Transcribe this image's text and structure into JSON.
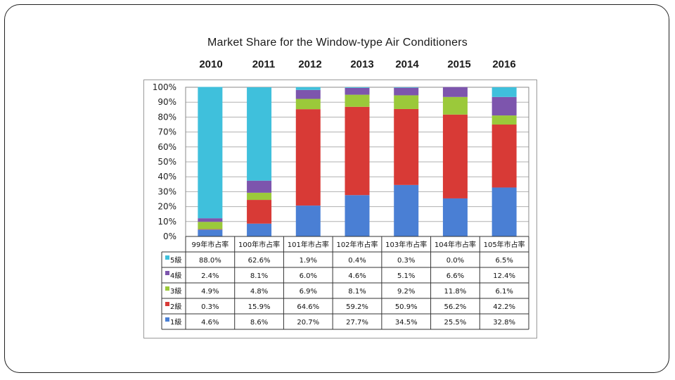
{
  "years": [
    "2010",
    "2011",
    "2012",
    "2013",
    "2014",
    "2015",
    "2016"
  ],
  "colors": {
    "frame": "#222222",
    "grid": "#b0b0b0",
    "s1": "#4a7fd4",
    "s2": "#d83a36",
    "s3": "#9bc93a",
    "s4": "#7d55ad",
    "s5": "#3fc0dc"
  },
  "chart_data": {
    "type": "bar",
    "stacked": true,
    "title": "Market Share for the Window-type Air Conditioners",
    "categories": [
      "99年市占率",
      "100年市占率",
      "101年市占率",
      "102年市占率",
      "103年市占率",
      "104年市占率",
      "105年市占率"
    ],
    "y_ticks": [
      "0%",
      "10%",
      "20%",
      "30%",
      "40%",
      "50%",
      "60%",
      "70%",
      "80%",
      "90%",
      "100%"
    ],
    "ylim": [
      0,
      100
    ],
    "grid": true,
    "legend": "table-left",
    "series": [
      {
        "name": "1級",
        "color": "#4a7fd4",
        "values": [
          4.6,
          8.6,
          20.7,
          27.7,
          34.5,
          25.5,
          32.8
        ],
        "labels": [
          "4.6%",
          "8.6%",
          "20.7%",
          "27.7%",
          "34.5%",
          "25.5%",
          "32.8%"
        ]
      },
      {
        "name": "2級",
        "color": "#d83a36",
        "values": [
          0.3,
          15.9,
          64.6,
          59.2,
          50.9,
          56.2,
          42.2
        ],
        "labels": [
          "0.3%",
          "15.9%",
          "64.6%",
          "59.2%",
          "50.9%",
          "56.2%",
          "42.2%"
        ]
      },
      {
        "name": "3級",
        "color": "#9bc93a",
        "values": [
          4.9,
          4.8,
          6.9,
          8.1,
          9.2,
          11.8,
          6.1
        ],
        "labels": [
          "4.9%",
          "4.8%",
          "6.9%",
          "8.1%",
          "9.2%",
          "11.8%",
          "6.1%"
        ]
      },
      {
        "name": "4級",
        "color": "#7d55ad",
        "values": [
          2.4,
          8.1,
          6.0,
          4.6,
          5.1,
          6.6,
          12.4
        ],
        "labels": [
          "2.4%",
          "8.1%",
          "6.0%",
          "4.6%",
          "5.1%",
          "6.6%",
          "12.4%"
        ]
      },
      {
        "name": "5級",
        "color": "#3fc0dc",
        "values": [
          88.0,
          62.6,
          1.9,
          0.4,
          0.3,
          0.0,
          6.5
        ],
        "labels": [
          "88.0%",
          "62.6%",
          "1.9%",
          "0.4%",
          "0.3%",
          "0.0%",
          "6.5%"
        ]
      }
    ]
  }
}
